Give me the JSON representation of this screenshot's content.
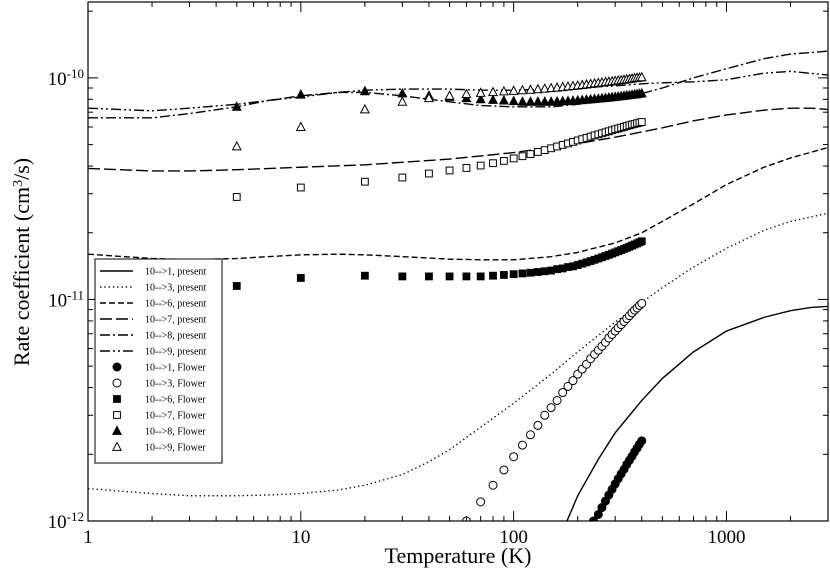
{
  "chart_data": {
    "type": "line",
    "xlabel": "Temperature (K)",
    "ylabel_prefix": "Rate coefficient (cm",
    "ylabel_sup": "3",
    "ylabel_suffix": "/s)",
    "x_scale": "log",
    "y_scale": "log",
    "xlim": [
      1,
      3000
    ],
    "ylim": [
      1e-12,
      2.2e-10
    ],
    "grid": false,
    "legend_position": "left",
    "x_ticks": [
      {
        "value": 1,
        "label": "1"
      },
      {
        "value": 10,
        "label": "10"
      },
      {
        "value": 100,
        "label": "100"
      },
      {
        "value": 1000,
        "label": "1000"
      }
    ],
    "y_ticks": [
      {
        "value": 1e-12,
        "mant": "10",
        "exp": "-12"
      },
      {
        "value": 1e-11,
        "mant": "10",
        "exp": "-11"
      },
      {
        "value": 1e-10,
        "mant": "10",
        "exp": "-10"
      }
    ],
    "series": [
      {
        "name": "10-->1, present",
        "style": "solid",
        "x": [
          170,
          200,
          250,
          300,
          400,
          500,
          700,
          1000,
          1500,
          2000,
          2500,
          3000
        ],
        "y": [
          9e-13,
          1.3e-12,
          1.9e-12,
          2.5e-12,
          3.5e-12,
          4.4e-12,
          5.8e-12,
          7.2e-12,
          8.3e-12,
          8.9e-12,
          9.2e-12,
          9.3e-12
        ]
      },
      {
        "name": "10-->3, present",
        "style": "dotted",
        "x": [
          1,
          2,
          3,
          5,
          7,
          10,
          15,
          20,
          30,
          40,
          50,
          70,
          100,
          150,
          200,
          300,
          400,
          500,
          700,
          1000,
          1500,
          2000,
          3000
        ],
        "y": [
          1.4e-12,
          1.33e-12,
          1.3e-12,
          1.3e-12,
          1.31e-12,
          1.33e-12,
          1.38e-12,
          1.45e-12,
          1.62e-12,
          1.85e-12,
          2.1e-12,
          2.65e-12,
          3.4e-12,
          4.6e-12,
          5.8e-12,
          7.9e-12,
          9.7e-12,
          1.13e-11,
          1.4e-11,
          1.7e-11,
          2.05e-11,
          2.25e-11,
          2.45e-11
        ]
      },
      {
        "name": "10-->6, present",
        "style": "dashed",
        "x": [
          1,
          2,
          3,
          5,
          7,
          10,
          15,
          20,
          30,
          50,
          70,
          100,
          150,
          200,
          300,
          400,
          500,
          700,
          1000,
          1500,
          2000,
          3000
        ],
        "y": [
          1.6e-11,
          1.53e-11,
          1.51e-11,
          1.53e-11,
          1.56e-11,
          1.59e-11,
          1.6e-11,
          1.59e-11,
          1.56e-11,
          1.52e-11,
          1.51e-11,
          1.51e-11,
          1.56e-11,
          1.63e-11,
          1.8e-11,
          2e-11,
          2.25e-11,
          2.7e-11,
          3.3e-11,
          3.95e-11,
          4.35e-11,
          4.85e-11
        ]
      },
      {
        "name": "10-->7, present",
        "style": "longdash",
        "x": [
          1,
          2,
          3,
          5,
          10,
          20,
          50,
          100,
          150,
          200,
          300,
          400,
          500,
          700,
          1000,
          1500,
          2000,
          2500,
          3000
        ],
        "y": [
          3.9e-11,
          3.8e-11,
          3.8e-11,
          3.85e-11,
          3.95e-11,
          4.05e-11,
          4.3e-11,
          4.6e-11,
          4.85e-11,
          5.05e-11,
          5.4e-11,
          5.7e-11,
          5.95e-11,
          6.4e-11,
          6.8e-11,
          7.15e-11,
          7.3e-11,
          7.3e-11,
          7.2e-11
        ]
      },
      {
        "name": "10-->8, present",
        "style": "dashdot",
        "x": [
          1,
          2,
          3,
          5,
          7,
          10,
          15,
          20,
          30,
          50,
          70,
          100,
          150,
          200,
          300,
          400,
          500,
          700,
          1000,
          1500,
          2000,
          3000
        ],
        "y": [
          6.6e-11,
          6.6e-11,
          6.9e-11,
          7.4e-11,
          7.9e-11,
          8.3e-11,
          8.6e-11,
          8.6e-11,
          8.3e-11,
          7.8e-11,
          7.5e-11,
          7.4e-11,
          7.4e-11,
          7.6e-11,
          8e-11,
          8.5e-11,
          9e-11,
          1e-10,
          1.1e-10,
          1.22e-10,
          1.28e-10,
          1.32e-10
        ]
      },
      {
        "name": "10-->9, present",
        "style": "dashdotdot",
        "x": [
          1,
          2,
          3,
          5,
          7,
          10,
          15,
          20,
          30,
          50,
          70,
          100,
          150,
          200,
          300,
          400,
          500,
          700,
          1000,
          1500,
          2000,
          3000
        ],
        "y": [
          7.3e-11,
          7.1e-11,
          7.3e-11,
          7.6e-11,
          7.9e-11,
          8.2e-11,
          8.6e-11,
          8.8e-11,
          8.9e-11,
          8.9e-11,
          8.8e-11,
          8.8e-11,
          8.9e-11,
          9e-11,
          9.2e-11,
          9.4e-11,
          9.5e-11,
          9.6e-11,
          9.8e-11,
          1.05e-10,
          1.07e-10,
          1.03e-10
        ]
      },
      {
        "name": "10-->1, Flower",
        "marker": "filled-circle",
        "x": [
          237,
          250,
          260,
          270,
          280,
          290,
          300,
          310,
          320,
          330,
          340,
          350,
          360,
          370,
          380,
          390,
          400
        ],
        "y": [
          1e-12,
          1.07e-12,
          1.15e-12,
          1.23e-12,
          1.31e-12,
          1.39e-12,
          1.47e-12,
          1.55e-12,
          1.63e-12,
          1.71e-12,
          1.8e-12,
          1.88e-12,
          1.96e-12,
          2.05e-12,
          2.13e-12,
          2.22e-12,
          2.3e-12
        ]
      },
      {
        "name": "10-->3, Flower",
        "marker": "open-circle",
        "x": [
          60,
          70,
          80,
          90,
          100,
          110,
          120,
          130,
          140,
          150,
          160,
          170,
          180,
          190,
          200,
          210,
          220,
          230,
          240,
          250,
          260,
          270,
          280,
          290,
          300,
          310,
          320,
          330,
          340,
          350,
          360,
          370,
          380,
          390,
          400
        ],
        "y": [
          1e-12,
          1.22e-12,
          1.45e-12,
          1.7e-12,
          1.95e-12,
          2.2e-12,
          2.45e-12,
          2.7e-12,
          3e-12,
          3.25e-12,
          3.5e-12,
          3.8e-12,
          4.05e-12,
          4.3e-12,
          4.6e-12,
          4.85e-12,
          5.1e-12,
          5.4e-12,
          5.65e-12,
          5.9e-12,
          6.15e-12,
          6.4e-12,
          6.7e-12,
          6.95e-12,
          7.2e-12,
          7.45e-12,
          7.7e-12,
          7.95e-12,
          8.2e-12,
          8.45e-12,
          8.7e-12,
          8.95e-12,
          9.15e-12,
          9.4e-12,
          9.6e-12
        ]
      },
      {
        "name": "10-->6, Flower",
        "marker": "filled-square",
        "x": [
          5,
          10,
          20,
          30,
          40,
          50,
          60,
          70,
          80,
          90,
          100,
          110,
          120,
          130,
          140,
          150,
          160,
          170,
          180,
          190,
          200,
          210,
          220,
          230,
          240,
          250,
          260,
          270,
          280,
          290,
          300,
          310,
          320,
          330,
          340,
          350,
          360,
          370,
          380,
          390,
          400
        ],
        "y": [
          1.15e-11,
          1.25e-11,
          1.28e-11,
          1.27e-11,
          1.27e-11,
          1.27e-11,
          1.27e-11,
          1.27e-11,
          1.28e-11,
          1.29e-11,
          1.3e-11,
          1.31e-11,
          1.32e-11,
          1.33e-11,
          1.34e-11,
          1.35e-11,
          1.37e-11,
          1.38e-11,
          1.4e-11,
          1.41e-11,
          1.43e-11,
          1.45e-11,
          1.47e-11,
          1.49e-11,
          1.51e-11,
          1.53e-11,
          1.55e-11,
          1.57e-11,
          1.59e-11,
          1.61e-11,
          1.63e-11,
          1.65e-11,
          1.67e-11,
          1.69e-11,
          1.71e-11,
          1.73e-11,
          1.75e-11,
          1.77e-11,
          1.79e-11,
          1.81e-11,
          1.83e-11
        ]
      },
      {
        "name": "10-->7, Flower",
        "marker": "open-square",
        "x": [
          5,
          10,
          20,
          30,
          40,
          50,
          60,
          70,
          80,
          90,
          100,
          110,
          120,
          130,
          140,
          150,
          160,
          170,
          180,
          190,
          200,
          210,
          220,
          230,
          240,
          250,
          260,
          270,
          280,
          290,
          300,
          310,
          320,
          330,
          340,
          350,
          360,
          370,
          380,
          390,
          400
        ],
        "y": [
          2.9e-11,
          3.2e-11,
          3.4e-11,
          3.55e-11,
          3.7e-11,
          3.82e-11,
          3.92e-11,
          4.02e-11,
          4.12e-11,
          4.22e-11,
          4.33e-11,
          4.43e-11,
          4.53e-11,
          4.63e-11,
          4.72e-11,
          4.81e-11,
          4.9e-11,
          4.98e-11,
          5.06e-11,
          5.14e-11,
          5.22e-11,
          5.29e-11,
          5.36e-11,
          5.43e-11,
          5.5e-11,
          5.56e-11,
          5.62e-11,
          5.68e-11,
          5.74e-11,
          5.8e-11,
          5.86e-11,
          5.91e-11,
          5.96e-11,
          6.01e-11,
          6.06e-11,
          6.11e-11,
          6.16e-11,
          6.2e-11,
          6.24e-11,
          6.28e-11,
          6.32e-11
        ]
      },
      {
        "name": "10-->8, Flower",
        "marker": "filled-triangle",
        "x": [
          5,
          10,
          20,
          30,
          40,
          50,
          60,
          70,
          80,
          90,
          100,
          110,
          120,
          130,
          140,
          150,
          160,
          170,
          180,
          190,
          200,
          210,
          220,
          230,
          240,
          250,
          260,
          270,
          280,
          290,
          300,
          310,
          320,
          330,
          340,
          350,
          360,
          370,
          380,
          390,
          400
        ],
        "y": [
          7.4e-11,
          8.4e-11,
          8.7e-11,
          8.5e-11,
          8.3e-11,
          8.2e-11,
          8.1e-11,
          8e-11,
          7.95e-11,
          7.9e-11,
          7.85e-11,
          7.8e-11,
          7.8e-11,
          7.8e-11,
          7.8e-11,
          7.8e-11,
          7.82e-11,
          7.84e-11,
          7.86e-11,
          7.88e-11,
          7.9e-11,
          7.93e-11,
          7.96e-11,
          7.99e-11,
          8.02e-11,
          8.05e-11,
          8.08e-11,
          8.11e-11,
          8.14e-11,
          8.17e-11,
          8.2e-11,
          8.23e-11,
          8.26e-11,
          8.29e-11,
          8.32e-11,
          8.35e-11,
          8.38e-11,
          8.41e-11,
          8.44e-11,
          8.47e-11,
          8.5e-11
        ]
      },
      {
        "name": "10-->9, Flower",
        "marker": "open-triangle",
        "x": [
          5,
          10,
          20,
          30,
          40,
          50,
          60,
          70,
          80,
          90,
          100,
          110,
          120,
          130,
          140,
          150,
          160,
          170,
          180,
          190,
          200,
          210,
          220,
          230,
          240,
          250,
          260,
          270,
          280,
          290,
          300,
          310,
          320,
          330,
          340,
          350,
          360,
          370,
          380,
          390,
          400
        ],
        "y": [
          4.9e-11,
          6e-11,
          7.2e-11,
          7.8e-11,
          8.1e-11,
          8.3e-11,
          8.45e-11,
          8.55e-11,
          8.62e-11,
          8.68e-11,
          8.73e-11,
          8.78e-11,
          8.83e-11,
          8.88e-11,
          8.93e-11,
          8.98e-11,
          9.03e-11,
          9.08e-11,
          9.13e-11,
          9.18e-11,
          9.23e-11,
          9.28e-11,
          9.33e-11,
          9.38e-11,
          9.43e-11,
          9.48e-11,
          9.52e-11,
          9.56e-11,
          9.6e-11,
          9.64e-11,
          9.68e-11,
          9.72e-11,
          9.76e-11,
          9.8e-11,
          9.84e-11,
          9.88e-11,
          9.92e-11,
          9.96e-11,
          1e-10,
          1.002e-10,
          1.005e-10
        ]
      }
    ]
  }
}
